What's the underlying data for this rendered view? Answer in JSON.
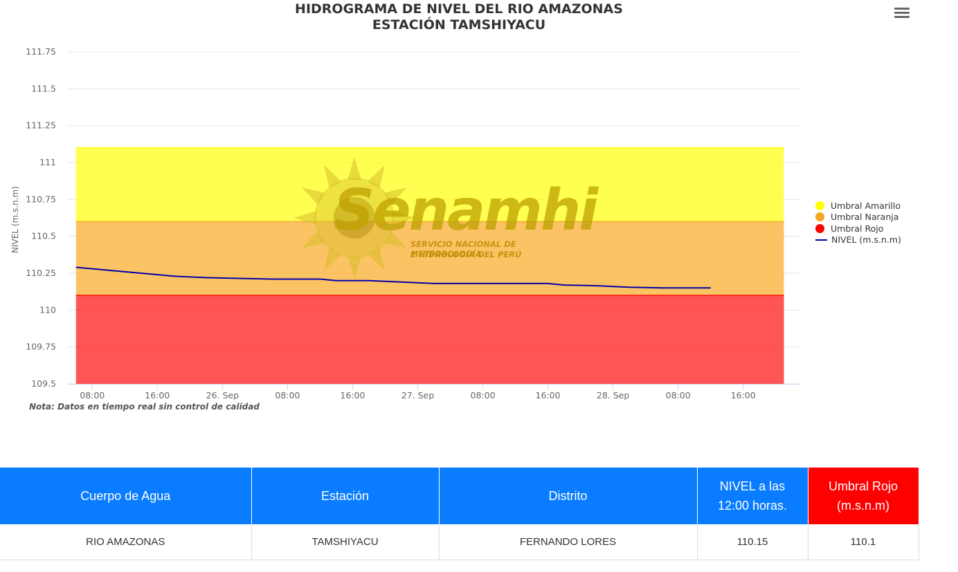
{
  "chart": {
    "title_line1": "HIDROGRAMA DE NIVEL DEL RIO AMAZONAS",
    "title_line2": "ESTACIÓN TAMSHIYACU",
    "note": "Nota: Datos en tiempo real sin control de calidad",
    "menu_icon": "hamburger-menu-icon",
    "watermark": {
      "word": "Senamhi",
      "line1": "SERVICIO NACIONAL DE METEOROLOGÍA",
      "line2": "E HIDROLOGÍA DEL PERÚ"
    }
  },
  "chart_data": {
    "type": "line",
    "title": "HIDROGRAMA DE NIVEL DEL RIO AMAZONAS ESTACIÓN TAMSHIYACU",
    "xlabel": "",
    "ylabel": "NIVEL (m.s.n.m)",
    "ylim": [
      109.5,
      111.75
    ],
    "yticks": [
      "111.75",
      "111.5",
      "111.25",
      "111",
      "110.75",
      "110.5",
      "110.25",
      "110",
      "109.75",
      "109.5"
    ],
    "xlim": [
      "2025-09-25 05:00",
      "2025-09-28 23:00"
    ],
    "xticks": [
      {
        "t": "2025-09-25 08:00",
        "label": "08:00"
      },
      {
        "t": "2025-09-25 16:00",
        "label": "16:00"
      },
      {
        "t": "2025-09-26 00:00",
        "label": "26. Sep"
      },
      {
        "t": "2025-09-26 08:00",
        "label": "08:00"
      },
      {
        "t": "2025-09-26 16:00",
        "label": "16:00"
      },
      {
        "t": "2025-09-27 00:00",
        "label": "27. Sep"
      },
      {
        "t": "2025-09-27 08:00",
        "label": "08:00"
      },
      {
        "t": "2025-09-27 16:00",
        "label": "16:00"
      },
      {
        "t": "2025-09-28 00:00",
        "label": "28. Sep"
      },
      {
        "t": "2025-09-28 08:00",
        "label": "08:00"
      },
      {
        "t": "2025-09-28 16:00",
        "label": "16:00"
      }
    ],
    "thresholds": [
      {
        "name": "Umbral Amarillo",
        "from": 110.6,
        "to": 111.1,
        "color": "#ffff00",
        "fill": "rgba(255,255,0,0.68)"
      },
      {
        "name": "Umbral Naranja",
        "from": 110.1,
        "to": 110.6,
        "color": "#f5a623",
        "fill": "rgba(251,172,40,0.72)"
      },
      {
        "name": "Umbral Rojo",
        "from": 109.5,
        "to": 110.1,
        "color": "#ff0000",
        "fill": "rgba(255,20,20,0.72)"
      }
    ],
    "threshold_xrange": [
      "2025-09-25 06:00",
      "2025-09-28 21:00"
    ],
    "series": [
      {
        "name": "NIVEL (m.s.n.m)",
        "color": "#0000aa",
        "points": [
          [
            "2025-09-25 06:00",
            110.29
          ],
          [
            "2025-09-25 10:00",
            110.27
          ],
          [
            "2025-09-25 14:00",
            110.25
          ],
          [
            "2025-09-25 18:00",
            110.23
          ],
          [
            "2025-09-25 22:00",
            110.22
          ],
          [
            "2025-09-26 02:00",
            110.215
          ],
          [
            "2025-09-26 06:00",
            110.21
          ],
          [
            "2025-09-26 12:00",
            110.21
          ],
          [
            "2025-09-26 14:00",
            110.2
          ],
          [
            "2025-09-26 18:00",
            110.2
          ],
          [
            "2025-09-26 22:00",
            110.19
          ],
          [
            "2025-09-27 02:00",
            110.18
          ],
          [
            "2025-09-27 08:00",
            110.18
          ],
          [
            "2025-09-27 16:00",
            110.18
          ],
          [
            "2025-09-27 18:00",
            110.17
          ],
          [
            "2025-09-27 22:00",
            110.165
          ],
          [
            "2025-09-28 02:00",
            110.155
          ],
          [
            "2025-09-28 06:00",
            110.15
          ],
          [
            "2025-09-28 12:00",
            110.15
          ]
        ]
      }
    ],
    "legend": [
      "Umbral Amarillo",
      "Umbral Naranja",
      "Umbral Rojo",
      "NIVEL (m.s.n.m)"
    ],
    "legend_position": "right",
    "grid": true
  },
  "table": {
    "headers": {
      "cuerpo": "Cuerpo de Agua",
      "estacion": "Estación",
      "distrito": "Distrito",
      "nivel_l1": "NIVEL a las",
      "nivel_l2": "12:00 horas.",
      "umbral_l1": "Umbral Rojo",
      "umbral_l2": "(m.s.n.m)"
    },
    "row": {
      "cuerpo": "RIO AMAZONAS",
      "estacion": "TAMSHIYACU",
      "distrito": "FERNANDO LORES",
      "nivel": "110.15",
      "umbral": "110.1"
    },
    "colors": {
      "header": "#0a7cff",
      "header_red": "#ff0000"
    }
  }
}
